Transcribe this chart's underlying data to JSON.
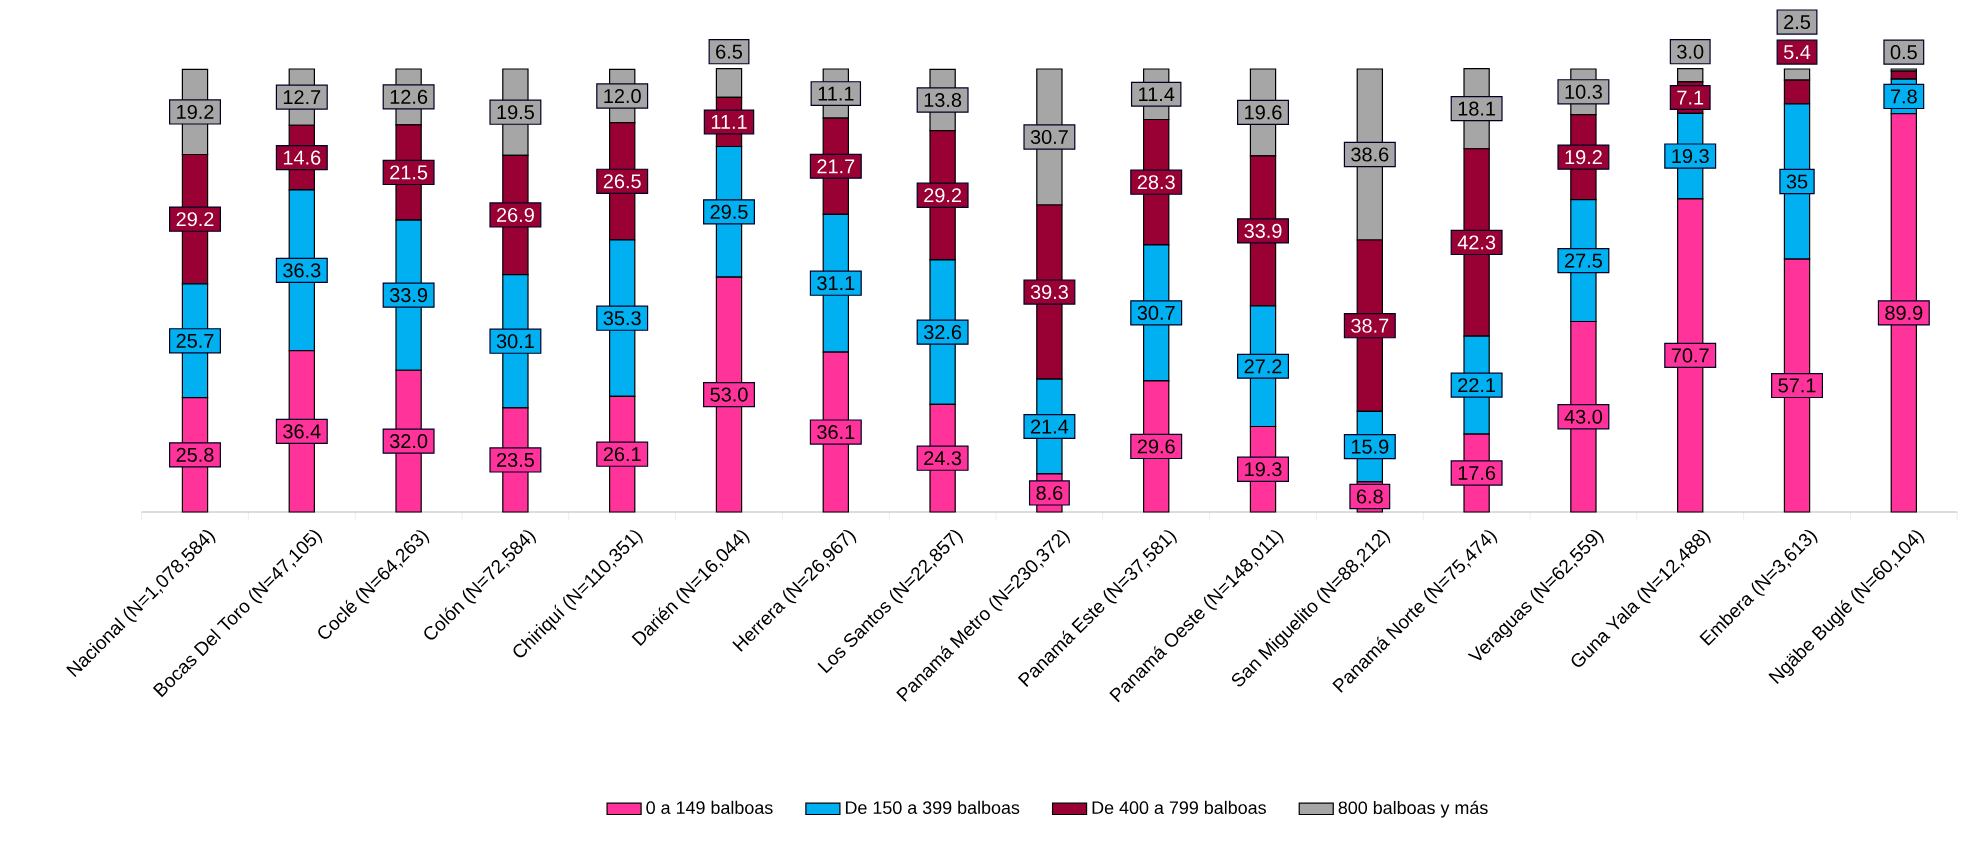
{
  "chart_data": {
    "type": "bar",
    "stacked": true,
    "legend": "bottom",
    "categories": [
      "Nacional (N=1,078,584)",
      "Bocas Del Toro (N=47,105)",
      "Coclé (N=64,263)",
      "Colón (N=72,584)",
      "Chiriquí (N=110,351)",
      "Darién (N=16,044)",
      "Herrera (N=26,967)",
      "Los Santos (N=22,857)",
      "Panamá Metro (N=230,372)",
      "Panamá Este (N=37,581)",
      "Panamá Oeste (N=148,011)",
      "San Miguelito (N=88,212)",
      "Panamá Norte (N=75,474)",
      "Veraguas (N=62,559)",
      "Guna Yala (N=12,488)",
      "Embera (N=3,613)",
      "Ngäbe Buglé (N=60,104)"
    ],
    "series": [
      {
        "name": "0 a 149 balboas",
        "color": "#ff3399",
        "values": [
          25.8,
          36.4,
          32.0,
          23.5,
          26.1,
          53.0,
          36.1,
          24.3,
          8.6,
          29.6,
          19.3,
          6.8,
          17.6,
          43.0,
          70.7,
          57.1,
          89.9
        ],
        "value_labels": [
          "25.8",
          "36.4",
          "32.0",
          "23.5",
          "26.1",
          "53.0",
          "36.1",
          "24.3",
          "8.6",
          "29.6",
          "19.3",
          "6.8",
          "17.6",
          "43.0",
          "70.7",
          "57.1",
          "89.9"
        ]
      },
      {
        "name": "De 150 a 399 balboas",
        "color": "#00b0f0",
        "values": [
          25.7,
          36.3,
          33.9,
          30.1,
          35.3,
          29.5,
          31.1,
          32.6,
          21.4,
          30.7,
          27.2,
          15.9,
          22.1,
          27.5,
          19.3,
          35,
          7.8
        ],
        "value_labels": [
          "25.7",
          "36.3",
          "33.9",
          "30.1",
          "35.3",
          "29.5",
          "31.1",
          "32.6",
          "21.4",
          "30.7",
          "27.2",
          "15.9",
          "22.1",
          "27.5",
          "19.3",
          "35",
          "7.8"
        ]
      },
      {
        "name": "De 400 a 799 balboas",
        "color": "#990033",
        "values": [
          29.2,
          14.6,
          21.5,
          26.9,
          26.5,
          11.1,
          21.7,
          29.2,
          39.3,
          28.3,
          33.9,
          38.7,
          42.3,
          19.2,
          7.1,
          5.4,
          1.8
        ],
        "value_labels": [
          "29.2",
          "14.6",
          "21.5",
          "26.9",
          "26.5",
          "11.1",
          "21.7",
          "29.2",
          "39.3",
          "28.3",
          "33.9",
          "38.7",
          "42.3",
          "19.2",
          "7.1",
          "5.4",
          null
        ]
      },
      {
        "name": "800 balboas y más",
        "color": "#a6a6a6",
        "values": [
          19.2,
          12.7,
          12.6,
          19.5,
          12.0,
          6.5,
          11.1,
          13.8,
          30.7,
          11.4,
          19.6,
          38.6,
          18.1,
          10.3,
          3.0,
          2.5,
          0.5
        ],
        "value_labels": [
          "19.2",
          "12.7",
          "12.6",
          "19.5",
          "12.0",
          "6.5",
          "11.1",
          "13.8",
          "30.7",
          "11.4",
          "19.6",
          "38.6",
          "18.1",
          "10.3",
          "3.0",
          "2.5",
          "0.5"
        ]
      }
    ]
  }
}
